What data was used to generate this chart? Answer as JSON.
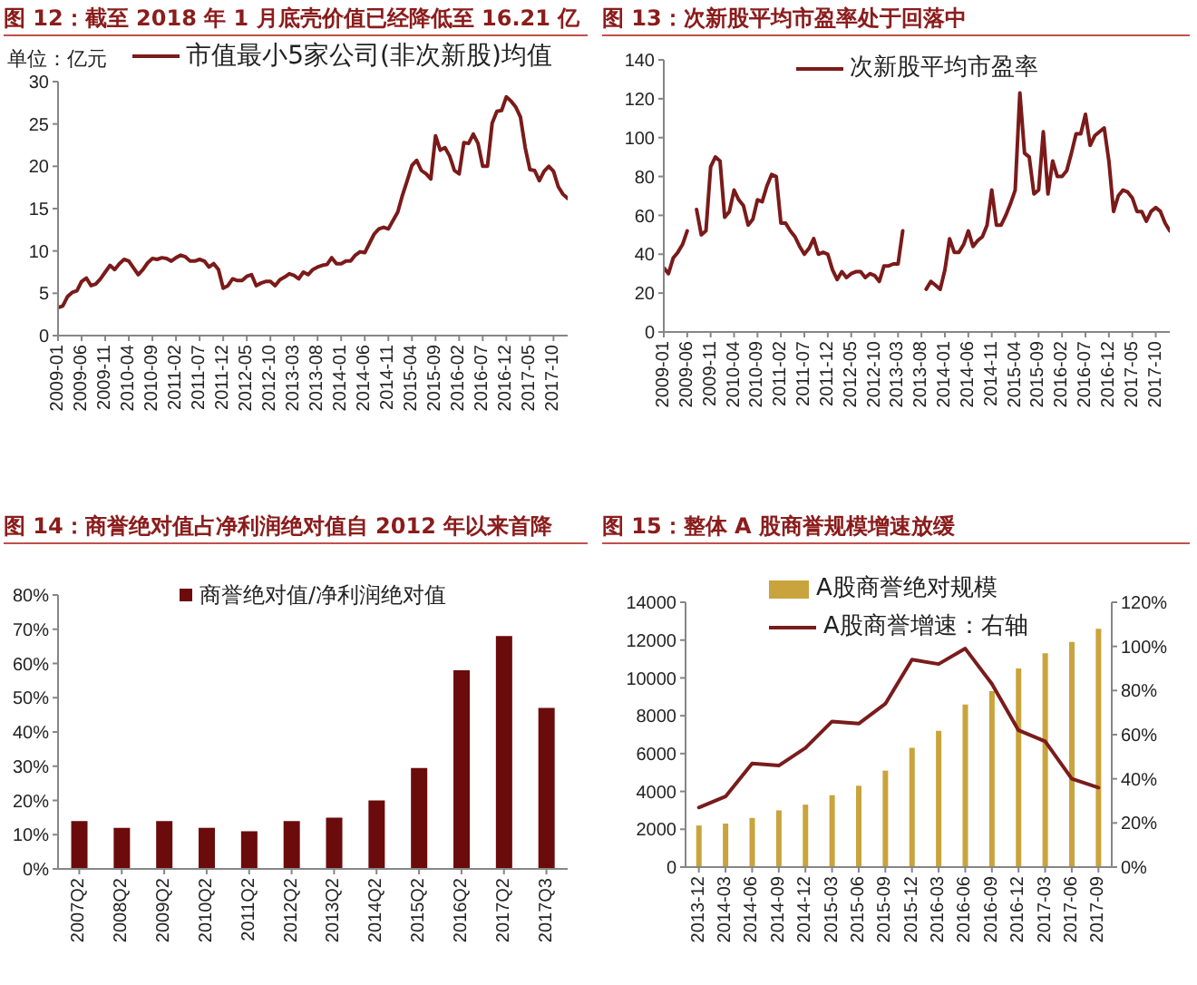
{
  "chart_data": [
    {
      "type": "line",
      "title": "图 12：截至 2018 年 1 月底壳价值已经降低至 16.21 亿",
      "ylabel": "单位：亿元",
      "x": [
        "2009-01",
        "2009-02",
        "2009-03",
        "2009-04",
        "2009-05",
        "2009-06",
        "2009-07",
        "2009-08",
        "2009-09",
        "2009-10",
        "2009-11",
        "2009-12",
        "2010-01",
        "2010-02",
        "2010-03",
        "2010-04",
        "2010-05",
        "2010-06",
        "2010-07",
        "2010-08",
        "2010-09",
        "2010-10",
        "2010-11",
        "2010-12",
        "2011-01",
        "2011-02",
        "2011-03",
        "2011-04",
        "2011-05",
        "2011-06",
        "2011-07",
        "2011-08",
        "2011-09",
        "2011-10",
        "2011-11",
        "2011-12",
        "2012-01",
        "2012-02",
        "2012-03",
        "2012-04",
        "2012-05",
        "2012-06",
        "2012-07",
        "2012-08",
        "2012-09",
        "2012-10",
        "2012-11",
        "2012-12",
        "2013-01",
        "2013-02",
        "2013-03",
        "2013-04",
        "2013-05",
        "2013-06",
        "2013-07",
        "2013-08",
        "2013-09",
        "2013-10",
        "2013-11",
        "2013-12",
        "2014-01",
        "2014-02",
        "2014-03",
        "2014-04",
        "2014-05",
        "2014-06",
        "2014-07",
        "2014-08",
        "2014-09",
        "2014-10",
        "2014-11",
        "2014-12",
        "2015-01",
        "2015-02",
        "2015-03",
        "2015-04",
        "2015-05",
        "2015-06",
        "2015-07",
        "2015-08",
        "2015-09",
        "2015-10",
        "2015-11",
        "2015-12",
        "2016-01",
        "2016-02",
        "2016-03",
        "2016-04",
        "2016-05",
        "2016-06",
        "2016-07",
        "2016-08",
        "2016-09",
        "2016-10",
        "2016-11",
        "2016-12",
        "2017-01",
        "2017-02",
        "2017-03",
        "2017-04",
        "2017-05",
        "2017-06",
        "2017-07",
        "2017-08",
        "2017-09",
        "2017-10",
        "2017-11",
        "2017-12",
        "2018-01"
      ],
      "series": [
        {
          "name": "市值最小5家公司(非次新股)均值",
          "color": "#7b1a1a",
          "values": [
            3.3,
            3.5,
            4.6,
            5.1,
            5.3,
            6.4,
            6.8,
            5.9,
            6.1,
            6.7,
            7.5,
            8.3,
            7.8,
            8.5,
            9.0,
            8.8,
            8.0,
            7.2,
            7.8,
            8.6,
            9.1,
            9.0,
            9.2,
            9.1,
            8.8,
            9.2,
            9.5,
            9.3,
            8.8,
            8.8,
            9.0,
            8.8,
            8.1,
            8.5,
            7.8,
            5.6,
            5.9,
            6.7,
            6.5,
            6.5,
            7.0,
            7.2,
            5.9,
            6.2,
            6.4,
            6.4,
            5.9,
            6.6,
            6.9,
            7.3,
            7.1,
            6.7,
            7.5,
            7.2,
            7.8,
            8.1,
            8.3,
            8.4,
            9.2,
            8.5,
            8.5,
            8.8,
            8.8,
            9.5,
            9.9,
            9.8,
            10.9,
            12.0,
            12.6,
            12.8,
            12.6,
            13.6,
            14.6,
            16.6,
            18.3,
            20.1,
            20.7,
            19.5,
            19.1,
            18.5,
            23.6,
            21.9,
            22.2,
            21.2,
            19.5,
            19.1,
            22.8,
            22.7,
            23.8,
            22.7,
            20.0,
            20.0,
            25.1,
            26.5,
            26.6,
            28.2,
            27.7,
            27.0,
            25.8,
            22.2,
            19.6,
            19.5,
            18.3,
            19.4,
            20.0,
            19.4,
            17.6,
            16.7,
            16.2
          ]
        }
      ],
      "xlim": [
        "2009-01",
        "2018-01"
      ],
      "xticks": [
        "2009-01",
        "2009-06",
        "2009-11",
        "2010-04",
        "2010-09",
        "2011-02",
        "2011-07",
        "2011-12",
        "2012-05",
        "2012-10",
        "2013-03",
        "2013-08",
        "2014-01",
        "2014-06",
        "2014-11",
        "2015-04",
        "2015-09",
        "2016-02",
        "2016-07",
        "2016-12",
        "2017-05",
        "2017-10"
      ],
      "ylim": [
        0,
        30
      ],
      "yticks": [
        0,
        5,
        10,
        15,
        20,
        25,
        30
      ],
      "legend": "top"
    },
    {
      "type": "line",
      "title": "图 13：次新股平均市盈率处于回落中",
      "x": [
        "2009-01",
        "2009-02",
        "2009-03",
        "2009-04",
        "2009-05",
        "2009-06",
        "2009-07",
        "2009-08",
        "2009-09",
        "2009-10",
        "2009-11",
        "2009-12",
        "2010-01",
        "2010-02",
        "2010-03",
        "2010-04",
        "2010-05",
        "2010-06",
        "2010-07",
        "2010-08",
        "2010-09",
        "2010-10",
        "2010-11",
        "2010-12",
        "2011-01",
        "2011-02",
        "2011-03",
        "2011-04",
        "2011-05",
        "2011-06",
        "2011-07",
        "2011-08",
        "2011-09",
        "2011-10",
        "2011-11",
        "2011-12",
        "2012-01",
        "2012-02",
        "2012-03",
        "2012-04",
        "2012-05",
        "2012-06",
        "2012-07",
        "2012-08",
        "2012-09",
        "2012-10",
        "2012-11",
        "2012-12",
        "2013-01",
        "2013-02",
        "2013-03",
        "2013-04",
        "2013-05",
        "2013-06",
        "2013-07",
        "2013-08",
        "2013-09",
        "2013-10",
        "2013-11",
        "2013-12",
        "2014-01",
        "2014-02",
        "2014-03",
        "2014-04",
        "2014-05",
        "2014-06",
        "2014-07",
        "2014-08",
        "2014-09",
        "2014-10",
        "2014-11",
        "2014-12",
        "2015-01",
        "2015-02",
        "2015-03",
        "2015-04",
        "2015-05",
        "2015-06",
        "2015-07",
        "2015-08",
        "2015-09",
        "2015-10",
        "2015-11",
        "2015-12",
        "2016-01",
        "2016-02",
        "2016-03",
        "2016-04",
        "2016-05",
        "2016-06",
        "2016-07",
        "2016-08",
        "2016-09",
        "2016-10",
        "2016-11",
        "2016-12",
        "2017-01",
        "2017-02",
        "2017-03",
        "2017-04",
        "2017-05",
        "2017-06",
        "2017-07",
        "2017-08",
        "2017-09",
        "2017-10",
        "2017-11",
        "2017-12",
        "2018-01"
      ],
      "series": [
        {
          "name": "次新股平均市盈率",
          "color": "#7b1a1a",
          "values": [
            33,
            30,
            38,
            41,
            45,
            52,
            null,
            63,
            50,
            52,
            85,
            90,
            88,
            59,
            62,
            73,
            68,
            65,
            55,
            58,
            68,
            67,
            75,
            81,
            80,
            56,
            56,
            52,
            49,
            44,
            40,
            43,
            48,
            40,
            41,
            40,
            32,
            27,
            31,
            28,
            30,
            31,
            31,
            28,
            30,
            29,
            26,
            34,
            34,
            35,
            35,
            52,
            null,
            null,
            null,
            null,
            22,
            26,
            24,
            22,
            32,
            48,
            41,
            41,
            45,
            52,
            44,
            47,
            49,
            55,
            73,
            55,
            55,
            60,
            66,
            73,
            123,
            92,
            90,
            71,
            73,
            103,
            71,
            88,
            80,
            80,
            83,
            92,
            102,
            102,
            112,
            96,
            101,
            103,
            105,
            88,
            62,
            70,
            73,
            72,
            69,
            62,
            62,
            57,
            62,
            64,
            62,
            56,
            52
          ]
        }
      ],
      "xlim": [
        "2009-01",
        "2018-01"
      ],
      "xticks": [
        "2009-01",
        "2009-06",
        "2009-11",
        "2010-04",
        "2010-09",
        "2011-02",
        "2011-07",
        "2011-12",
        "2012-05",
        "2012-10",
        "2013-03",
        "2013-08",
        "2014-01",
        "2014-06",
        "2014-11",
        "2015-04",
        "2015-09",
        "2016-02",
        "2016-07",
        "2016-12",
        "2017-05",
        "2017-10"
      ],
      "ylim": [
        0,
        140
      ],
      "yticks": [
        0,
        20,
        40,
        60,
        80,
        100,
        120,
        140
      ],
      "legend": "top"
    },
    {
      "type": "bar",
      "title": "图 14：商誉绝对值占净利润绝对值自 2012 年以来首降",
      "categories": [
        "2007Q2",
        "2008Q2",
        "2009Q2",
        "2010Q2",
        "2011Q2",
        "2012Q2",
        "2013Q2",
        "2014Q2",
        "2015Q2",
        "2016Q2",
        "2017Q2",
        "2017Q3"
      ],
      "series": [
        {
          "name": "商誉绝对值/净利润绝对值",
          "color": "#6b0b0b",
          "values": [
            14,
            12,
            14,
            12,
            11,
            14,
            15,
            20,
            29.5,
            58,
            68,
            47
          ]
        }
      ],
      "ylim": [
        0,
        80
      ],
      "yticks": [
        {
          "value": 0,
          "label": "0%"
        },
        {
          "value": 10,
          "label": "10%"
        },
        {
          "value": 20,
          "label": "20%"
        },
        {
          "value": 30,
          "label": "30%"
        },
        {
          "value": 40,
          "label": "40%"
        },
        {
          "value": 50,
          "label": "50%"
        },
        {
          "value": 60,
          "label": "60%"
        },
        {
          "value": 70,
          "label": "70%"
        },
        {
          "value": 80,
          "label": "80%"
        }
      ],
      "legend": "top"
    },
    {
      "type": "bar",
      "title": "图 15：整体 A 股商誉规模增速放缓",
      "categories": [
        "2013-12",
        "2014-03",
        "2014-06",
        "2014-09",
        "2014-12",
        "2015-03",
        "2015-06",
        "2015-09",
        "2015-12",
        "2016-03",
        "2016-06",
        "2016-09",
        "2016-12",
        "2017-03",
        "2017-06",
        "2017-09"
      ],
      "series": [
        {
          "name": "A股商誉绝对规模",
          "color": "#c9a33c",
          "values": [
            2200,
            2300,
            2600,
            3000,
            3300,
            3800,
            4300,
            5100,
            6300,
            7200,
            8600,
            9300,
            10500,
            11300,
            11900,
            12600
          ]
        },
        {
          "name": "A股商誉增速：右轴",
          "type": "line",
          "axis": "y2",
          "color": "#7a1c1c",
          "values": [
            27,
            32,
            47,
            46,
            54,
            66,
            65,
            74,
            94,
            92,
            99,
            83,
            62,
            57,
            40,
            36
          ]
        }
      ],
      "ylim": [
        0,
        14000
      ],
      "yticks": [
        0,
        2000,
        4000,
        6000,
        8000,
        10000,
        12000,
        14000
      ],
      "y2lim": [
        0,
        120
      ],
      "y2ticks": [
        {
          "value": 0,
          "label": "0%"
        },
        {
          "value": 20,
          "label": "20%"
        },
        {
          "value": 40,
          "label": "40%"
        },
        {
          "value": 60,
          "label": "60%"
        },
        {
          "value": 80,
          "label": "80%"
        },
        {
          "value": 100,
          "label": "100%"
        },
        {
          "value": 120,
          "label": "120%"
        }
      ],
      "legend": "top"
    }
  ]
}
